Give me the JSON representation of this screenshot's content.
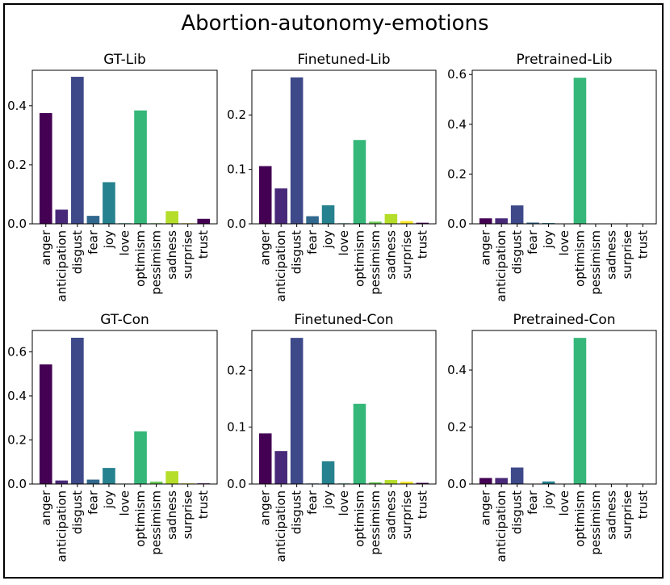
{
  "title": "Abortion-autonomy-emotions",
  "colors": [
    "#440154",
    "#482878",
    "#3e4989",
    "#31688e",
    "#26828e",
    "#1f9e89",
    "#35b779",
    "#6ece58",
    "#b5de2b",
    "#fde725"
  ],
  "chart_data": [
    {
      "type": "bar",
      "title": "GT-Lib",
      "categories": [
        "anger",
        "anticipation",
        "disgust",
        "fear",
        "joy",
        "love",
        "optimism",
        "pessimism",
        "sadness",
        "surprise",
        "trust"
      ],
      "values": [
        0.375,
        0.048,
        0.498,
        0.027,
        0.141,
        0.002,
        0.384,
        0.002,
        0.043,
        0.002,
        0.017
      ],
      "ylim": [
        0,
        0.52
      ],
      "yticks": [
        0.0,
        0.2,
        0.4
      ],
      "xlabel": "",
      "ylabel": ""
    },
    {
      "type": "bar",
      "title": "Finetuned-Lib",
      "categories": [
        "anger",
        "anticipation",
        "disgust",
        "fear",
        "joy",
        "love",
        "optimism",
        "pessimism",
        "sadness",
        "surprise",
        "trust"
      ],
      "values": [
        0.106,
        0.065,
        0.269,
        0.014,
        0.034,
        0.001,
        0.154,
        0.004,
        0.018,
        0.005,
        0.002
      ],
      "ylim": [
        0,
        0.282
      ],
      "yticks": [
        0.0,
        0.1,
        0.2
      ],
      "xlabel": "",
      "ylabel": ""
    },
    {
      "type": "bar",
      "title": "Pretrained-Lib",
      "categories": [
        "anger",
        "anticipation",
        "disgust",
        "fear",
        "joy",
        "love",
        "optimism",
        "pessimism",
        "sadness",
        "surprise",
        "trust"
      ],
      "values": [
        0.022,
        0.022,
        0.074,
        0.005,
        0.003,
        0.001,
        0.587,
        0.001,
        0.001,
        0.001,
        0.001
      ],
      "ylim": [
        0,
        0.617
      ],
      "yticks": [
        0.0,
        0.2,
        0.4,
        0.6
      ],
      "xlabel": "",
      "ylabel": ""
    },
    {
      "type": "bar",
      "title": "GT-Con",
      "categories": [
        "anger",
        "anticipation",
        "disgust",
        "fear",
        "joy",
        "love",
        "optimism",
        "pessimism",
        "sadness",
        "surprise",
        "trust"
      ],
      "values": [
        0.543,
        0.016,
        0.664,
        0.02,
        0.073,
        0.002,
        0.239,
        0.011,
        0.058,
        0.003,
        0.003
      ],
      "ylim": [
        0,
        0.697
      ],
      "yticks": [
        0.0,
        0.2,
        0.4,
        0.6
      ],
      "xlabel": "",
      "ylabel": ""
    },
    {
      "type": "bar",
      "title": "Finetuned-Con",
      "categories": [
        "anger",
        "anticipation",
        "disgust",
        "fear",
        "joy",
        "love",
        "optimism",
        "pessimism",
        "sadness",
        "surprise",
        "trust"
      ],
      "values": [
        0.089,
        0.058,
        0.257,
        0.001,
        0.04,
        0.001,
        0.141,
        0.003,
        0.007,
        0.004,
        0.002
      ],
      "ylim": [
        0,
        0.27
      ],
      "yticks": [
        0.0,
        0.1,
        0.2
      ],
      "xlabel": "",
      "ylabel": ""
    },
    {
      "type": "bar",
      "title": "Pretrained-Con",
      "categories": [
        "anger",
        "anticipation",
        "disgust",
        "fear",
        "joy",
        "love",
        "optimism",
        "pessimism",
        "sadness",
        "surprise",
        "trust"
      ],
      "values": [
        0.021,
        0.021,
        0.058,
        0.001,
        0.009,
        0.001,
        0.513,
        0.001,
        0.001,
        0.001,
        0.001
      ],
      "ylim": [
        0,
        0.539
      ],
      "yticks": [
        0.0,
        0.2,
        0.4
      ],
      "xlabel": "",
      "ylabel": ""
    }
  ]
}
